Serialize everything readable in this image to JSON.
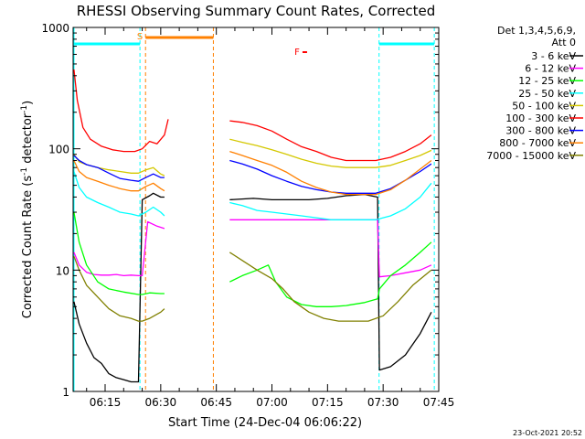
{
  "chart_data": {
    "type": "line",
    "title": "RHESSI Observing Summary Count Rates, Corrected",
    "xlabel": "Start Time (24-Dec-04 06:06:22)",
    "ylabel": "Corrected Count Rate (s⁻¹ detector⁻¹)",
    "ylabel_parts": [
      "Corrected Count Rate (s",
      "-1",
      " detector",
      "-1",
      ")"
    ],
    "yscale": "log",
    "ylim": [
      1,
      1000
    ],
    "xlim_min": [
      6.3667,
      105.0
    ],
    "xticks": [
      {
        "min": 15,
        "label": "06:15"
      },
      {
        "min": 30,
        "label": "06:30"
      },
      {
        "min": 45,
        "label": "06:45"
      },
      {
        "min": 60,
        "label": "07:00"
      },
      {
        "min": 75,
        "label": "07:15"
      },
      {
        "min": 90,
        "label": "07:30"
      },
      {
        "min": 105,
        "label": "07:45"
      }
    ],
    "yticks": [
      {
        "v": 1,
        "label": "1"
      },
      {
        "v": 10,
        "label": "10"
      },
      {
        "v": 100,
        "label": "100"
      },
      {
        "v": 1000,
        "label": "1000"
      }
    ],
    "legend_header": [
      "Det 1,3,4,5,6,9,",
      "Att 0"
    ],
    "legend_placement": "right",
    "footer_date": "23-Oct-2021 20:52",
    "flags": {
      "eclipse_color": "#00ffff",
      "saa_color": "#ff8000",
      "flare_color": "#ff0000",
      "saa_label": "S",
      "flare_label": "F",
      "eclipse_before_end": 24.4,
      "eclipse_after_start": 88.9,
      "eclipse_after_end": 103.8,
      "saa_start": 25.9,
      "saa_end": 44.2,
      "flare_marker_min": 68.0
    },
    "gaps": [
      [
        44.2,
        48.5
      ]
    ],
    "series": [
      {
        "name": "3 - 6 keV",
        "color": "#000000",
        "points": [
          [
            6.6,
            5.5
          ],
          [
            8,
            3.6
          ],
          [
            10,
            2.5
          ],
          [
            12,
            1.9
          ],
          [
            14,
            1.7
          ],
          [
            16,
            1.4
          ],
          [
            18,
            1.3
          ],
          [
            20,
            1.25
          ],
          [
            22,
            1.2
          ],
          [
            24,
            1.2
          ],
          [
            25,
            38
          ],
          [
            27,
            41
          ],
          [
            28,
            43
          ],
          [
            30,
            40
          ],
          [
            31,
            40
          ],
          [
            48.6,
            38
          ],
          [
            55,
            39
          ],
          [
            60,
            38
          ],
          [
            65,
            38
          ],
          [
            70,
            38
          ],
          [
            75,
            39
          ],
          [
            80,
            41
          ],
          [
            85,
            42
          ],
          [
            88.5,
            40
          ],
          [
            89,
            1.5
          ],
          [
            92,
            1.6
          ],
          [
            96,
            2.0
          ],
          [
            100,
            3.0
          ],
          [
            103,
            4.5
          ]
        ]
      },
      {
        "name": "6 - 12 keV",
        "color": "#ff00ff",
        "points": [
          [
            6.6,
            14
          ],
          [
            8,
            11
          ],
          [
            10,
            9.6
          ],
          [
            12,
            9.2
          ],
          [
            14,
            9.1
          ],
          [
            16,
            9.1
          ],
          [
            18,
            9.2
          ],
          [
            20,
            9.0
          ],
          [
            22,
            9.1
          ],
          [
            24,
            9.0
          ],
          [
            25,
            9.0
          ],
          [
            26.5,
            25
          ],
          [
            29,
            23
          ],
          [
            31,
            22
          ],
          [
            48.6,
            26
          ],
          [
            55,
            26
          ],
          [
            60,
            26
          ],
          [
            65,
            26
          ],
          [
            70,
            26
          ],
          [
            75,
            26
          ],
          [
            80,
            26
          ],
          [
            85,
            26
          ],
          [
            88.5,
            26
          ],
          [
            89,
            8.8
          ],
          [
            92,
            9.0
          ],
          [
            96,
            9.5
          ],
          [
            100,
            10
          ],
          [
            103,
            11
          ]
        ]
      },
      {
        "name": "12 - 25 keV",
        "color": "#00ff00",
        "points": [
          [
            6.6,
            30
          ],
          [
            8,
            17
          ],
          [
            10,
            11
          ],
          [
            13,
            8
          ],
          [
            16,
            7.0
          ],
          [
            20,
            6.6
          ],
          [
            24,
            6.3
          ],
          [
            25,
            6.3
          ],
          [
            27,
            6.5
          ],
          [
            30,
            6.4
          ],
          [
            31,
            6.4
          ],
          [
            48.6,
            8
          ],
          [
            52,
            9
          ],
          [
            56,
            10
          ],
          [
            59,
            11
          ],
          [
            61,
            8
          ],
          [
            64,
            6
          ],
          [
            68,
            5.2
          ],
          [
            72,
            5.0
          ],
          [
            76,
            5.0
          ],
          [
            80,
            5.1
          ],
          [
            85,
            5.4
          ],
          [
            88.5,
            5.8
          ],
          [
            89,
            7
          ],
          [
            92,
            9
          ],
          [
            96,
            11
          ],
          [
            100,
            14
          ],
          [
            103,
            17
          ]
        ]
      },
      {
        "name": "25 - 50 keV",
        "color": "#00ffff",
        "points": [
          [
            6.6,
            65
          ],
          [
            8,
            48
          ],
          [
            10,
            40
          ],
          [
            13,
            36
          ],
          [
            16,
            33
          ],
          [
            19,
            30
          ],
          [
            22,
            29
          ],
          [
            24,
            28
          ],
          [
            26,
            30
          ],
          [
            28,
            33
          ],
          [
            30,
            30
          ],
          [
            31,
            28
          ],
          [
            48.6,
            36
          ],
          [
            52,
            34
          ],
          [
            56,
            31
          ],
          [
            60,
            30
          ],
          [
            64,
            29
          ],
          [
            68,
            28
          ],
          [
            72,
            27
          ],
          [
            76,
            26
          ],
          [
            80,
            26
          ],
          [
            84,
            26
          ],
          [
            88,
            26
          ],
          [
            92,
            28
          ],
          [
            96,
            32
          ],
          [
            100,
            40
          ],
          [
            103,
            52
          ]
        ]
      },
      {
        "name": "50 - 100 keV",
        "color": "#d4c800",
        "points": [
          [
            6.6,
            90
          ],
          [
            8,
            78
          ],
          [
            10,
            74
          ],
          [
            13,
            70
          ],
          [
            16,
            67
          ],
          [
            19,
            65
          ],
          [
            22,
            63
          ],
          [
            24,
            63
          ],
          [
            26,
            67
          ],
          [
            28,
            70
          ],
          [
            30,
            62
          ],
          [
            31,
            60
          ],
          [
            48.6,
            120
          ],
          [
            52,
            113
          ],
          [
            56,
            106
          ],
          [
            60,
            98
          ],
          [
            64,
            90
          ],
          [
            68,
            82
          ],
          [
            72,
            76
          ],
          [
            76,
            72
          ],
          [
            80,
            70
          ],
          [
            84,
            70
          ],
          [
            88,
            70
          ],
          [
            92,
            73
          ],
          [
            96,
            80
          ],
          [
            100,
            88
          ],
          [
            103,
            97
          ]
        ]
      },
      {
        "name": "100 - 300 keV",
        "color": "#ff0000",
        "points": [
          [
            6.6,
            450
          ],
          [
            7.5,
            250
          ],
          [
            9,
            150
          ],
          [
            11,
            120
          ],
          [
            14,
            105
          ],
          [
            17,
            98
          ],
          [
            20,
            95
          ],
          [
            23,
            95
          ],
          [
            25,
            100
          ],
          [
            27,
            115
          ],
          [
            29,
            110
          ],
          [
            31,
            130
          ],
          [
            32,
            175
          ],
          [
            48.6,
            170
          ],
          [
            52,
            165
          ],
          [
            56,
            155
          ],
          [
            60,
            140
          ],
          [
            64,
            120
          ],
          [
            68,
            104
          ],
          [
            72,
            95
          ],
          [
            76,
            85
          ],
          [
            80,
            80
          ],
          [
            84,
            80
          ],
          [
            88,
            80
          ],
          [
            92,
            85
          ],
          [
            96,
            95
          ],
          [
            100,
            110
          ],
          [
            103,
            130
          ]
        ]
      },
      {
        "name": "300 - 800 keV",
        "color": "#0000ff",
        "points": [
          [
            6.6,
            88
          ],
          [
            8,
            80
          ],
          [
            10,
            74
          ],
          [
            13,
            70
          ],
          [
            16,
            63
          ],
          [
            19,
            57
          ],
          [
            22,
            55
          ],
          [
            24,
            54
          ],
          [
            26,
            58
          ],
          [
            28,
            62
          ],
          [
            30,
            58
          ],
          [
            31,
            58
          ],
          [
            48.6,
            80
          ],
          [
            52,
            75
          ],
          [
            56,
            68
          ],
          [
            60,
            60
          ],
          [
            64,
            54
          ],
          [
            68,
            49
          ],
          [
            72,
            46
          ],
          [
            76,
            44
          ],
          [
            80,
            43
          ],
          [
            84,
            43
          ],
          [
            88,
            43
          ],
          [
            92,
            47
          ],
          [
            96,
            55
          ],
          [
            100,
            65
          ],
          [
            103,
            75
          ]
        ]
      },
      {
        "name": "800 - 7000 keV",
        "color": "#ff8000",
        "points": [
          [
            6.6,
            80
          ],
          [
            8,
            65
          ],
          [
            10,
            58
          ],
          [
            13,
            54
          ],
          [
            16,
            50
          ],
          [
            19,
            47
          ],
          [
            22,
            45
          ],
          [
            24,
            45
          ],
          [
            26,
            49
          ],
          [
            28,
            52
          ],
          [
            30,
            47
          ],
          [
            31,
            45
          ],
          [
            48.6,
            95
          ],
          [
            52,
            88
          ],
          [
            56,
            80
          ],
          [
            60,
            73
          ],
          [
            64,
            64
          ],
          [
            68,
            54
          ],
          [
            72,
            48
          ],
          [
            76,
            44
          ],
          [
            80,
            42
          ],
          [
            84,
            42
          ],
          [
            88,
            42
          ],
          [
            92,
            46
          ],
          [
            96,
            55
          ],
          [
            100,
            68
          ],
          [
            103,
            80
          ]
        ]
      },
      {
        "name": "7000 - 15000 keV",
        "color": "#808000",
        "points": [
          [
            6.6,
            13
          ],
          [
            8,
            10
          ],
          [
            10,
            7.5
          ],
          [
            13,
            6
          ],
          [
            16,
            4.8
          ],
          [
            19,
            4.2
          ],
          [
            22,
            4.0
          ],
          [
            24,
            3.8
          ],
          [
            25,
            3.8
          ],
          [
            27,
            4.0
          ],
          [
            30,
            4.5
          ],
          [
            31,
            4.8
          ],
          [
            48.6,
            14
          ],
          [
            52,
            12
          ],
          [
            56,
            10
          ],
          [
            60,
            8.5
          ],
          [
            63,
            7
          ],
          [
            66,
            5.5
          ],
          [
            70,
            4.5
          ],
          [
            74,
            4.0
          ],
          [
            78,
            3.8
          ],
          [
            82,
            3.8
          ],
          [
            86,
            3.8
          ],
          [
            90,
            4.2
          ],
          [
            94,
            5.5
          ],
          [
            98,
            7.5
          ],
          [
            103,
            10
          ]
        ]
      }
    ]
  }
}
